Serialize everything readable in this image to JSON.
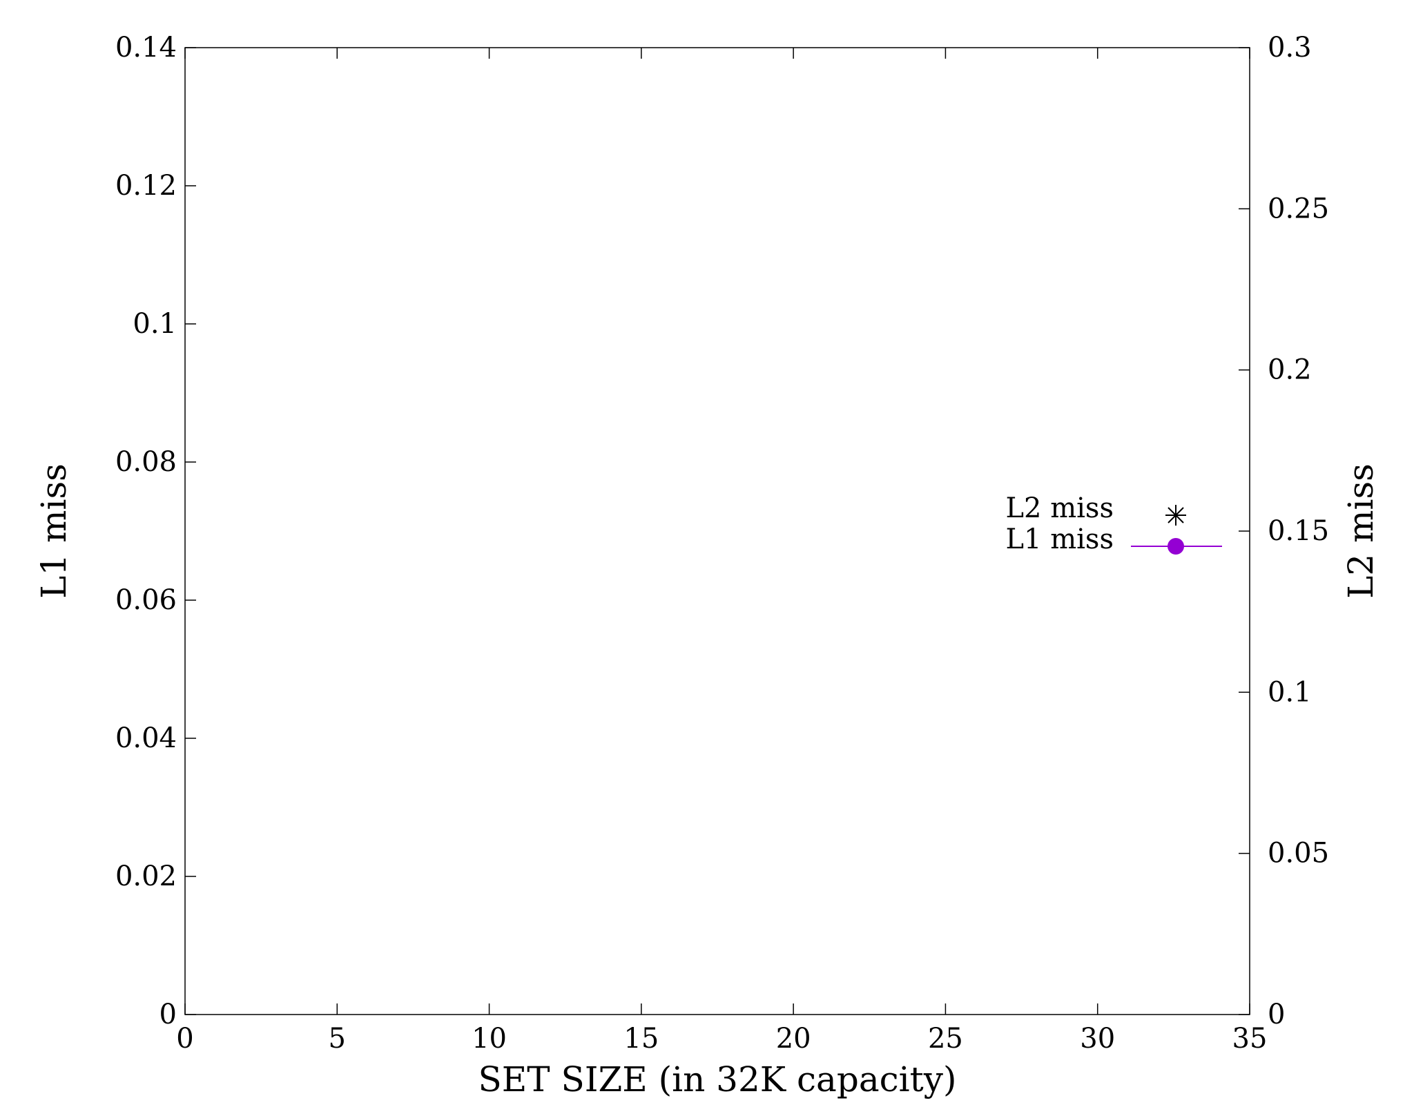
{
  "chart_data": {
    "type": "line",
    "title": "",
    "xlabel": "SET SIZE (in 32K capacity)",
    "ylabel": "L1 miss",
    "y2label": "L2 miss",
    "xlim": [
      0,
      35
    ],
    "ylim": [
      0,
      0.14
    ],
    "y2lim": [
      0,
      0.3
    ],
    "x_ticks": [
      "0",
      "5",
      "10",
      "15",
      "20",
      "25",
      "30",
      "35"
    ],
    "y_ticks": [
      "0",
      "0.02",
      "0.04",
      "0.06",
      "0.08",
      "0.1",
      "0.12",
      "0.14"
    ],
    "y2_ticks": [
      "0",
      "0.05",
      "0.1",
      "0.15",
      "0.2",
      "0.25",
      "0.3"
    ],
    "grid": false,
    "legend_position": "right",
    "series": [
      {
        "name": "L2 miss",
        "axis": "y2",
        "marker": "asterisk",
        "color": "#000000",
        "x": [],
        "values": []
      },
      {
        "name": "L1 miss",
        "axis": "y",
        "marker": "filled-circle",
        "line": true,
        "color": "#9400d3",
        "x": [],
        "values": []
      }
    ]
  }
}
